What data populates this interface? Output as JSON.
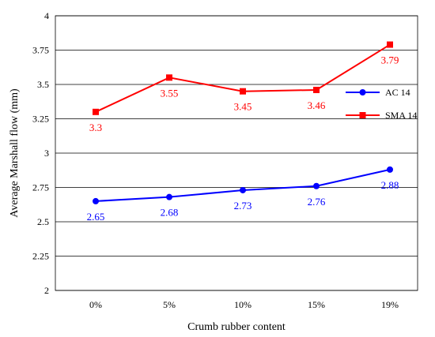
{
  "chart_data": {
    "type": "line",
    "title": "",
    "xlabel": "Crumb rubber content",
    "ylabel": "Average Marshall flow (mm)",
    "categories": [
      "0%",
      "5%",
      "10%",
      "15%",
      "19%"
    ],
    "ylim": [
      2,
      4
    ],
    "yticks": [
      "2",
      "2.25",
      "2.5",
      "2.75",
      "3",
      "3.25",
      "3.5",
      "3.75",
      "4"
    ],
    "grid": true,
    "legend_position": "right",
    "series": [
      {
        "name": "AC 14",
        "color": "#0000ff",
        "marker": "circle",
        "values": [
          2.65,
          2.68,
          2.73,
          2.76,
          2.88
        ],
        "labels": [
          "2.65",
          "2.68",
          "2.73",
          "2.76",
          "2.88"
        ]
      },
      {
        "name": "SMA 14",
        "color": "#ff0000",
        "marker": "square",
        "values": [
          3.3,
          3.55,
          3.45,
          3.46,
          3.79
        ],
        "labels": [
          "3.3",
          "3.55",
          "3.45",
          "3.46",
          "3.79"
        ]
      }
    ]
  }
}
